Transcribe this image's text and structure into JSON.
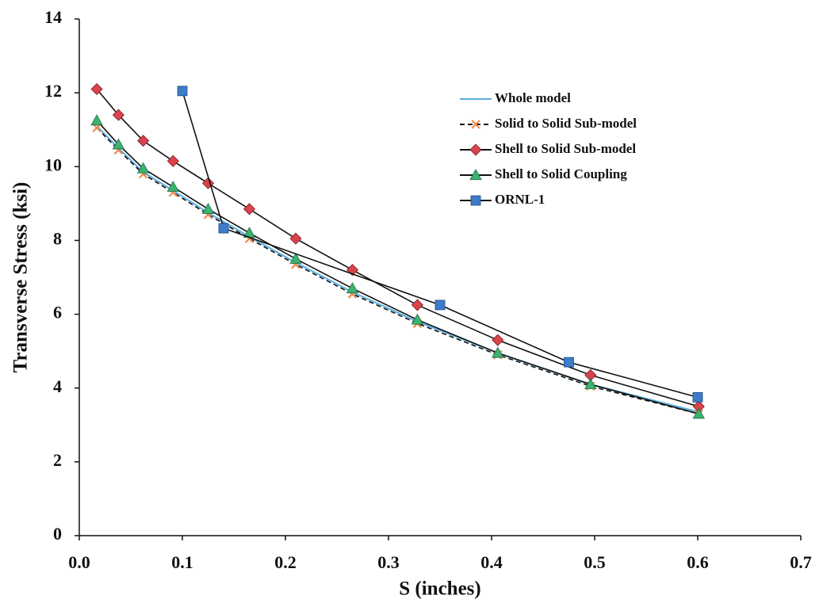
{
  "chart_data": {
    "type": "line",
    "x_label": "S (inches)",
    "y_label": "Transverse Stress (ksi)",
    "xlim": [
      0,
      0.7
    ],
    "ylim": [
      0,
      14
    ],
    "xticks": [
      {
        "value": 0,
        "label": "0.0"
      },
      0.1,
      0.2,
      0.3,
      0.4,
      0.5,
      0.6,
      0.7
    ],
    "yticks": [
      0,
      2,
      4,
      6,
      8,
      10,
      12,
      14
    ],
    "series": [
      {
        "name": "Whole model",
        "color": "#5aaee0",
        "line_color": "#5aaee0",
        "marker": "none",
        "dashed": false,
        "x": [
          0.017,
          0.038,
          0.062,
          0.091,
          0.125,
          0.165,
          0.21,
          0.265,
          0.328,
          0.406,
          0.496,
          0.601
        ],
        "values": [
          11.1,
          10.5,
          9.85,
          9.35,
          8.75,
          8.1,
          7.4,
          6.6,
          5.8,
          4.95,
          4.1,
          3.35
        ]
      },
      {
        "name": "Solid to Solid Sub-model",
        "color": "#f08a4b",
        "line_color": "#111111",
        "marker": "x",
        "dashed": true,
        "x": [
          0.017,
          0.038,
          0.062,
          0.091,
          0.125,
          0.165,
          0.21,
          0.265,
          0.328,
          0.406,
          0.496,
          0.601
        ],
        "values": [
          11.05,
          10.45,
          9.8,
          9.3,
          8.7,
          8.05,
          7.35,
          6.55,
          5.75,
          4.9,
          4.05,
          3.3
        ]
      },
      {
        "name": "Shell to Solid Sub-model",
        "color": "#d9434b",
        "line_color": "#111111",
        "marker": "diamond",
        "dashed": false,
        "x": [
          0.017,
          0.038,
          0.062,
          0.091,
          0.125,
          0.165,
          0.21,
          0.265,
          0.328,
          0.406,
          0.496,
          0.601
        ],
        "values": [
          12.1,
          11.4,
          10.7,
          10.15,
          9.55,
          8.85,
          8.05,
          7.2,
          6.25,
          5.3,
          4.35,
          3.5
        ]
      },
      {
        "name": "Shell to Solid Coupling",
        "color": "#3cb371",
        "line_color": "#111111",
        "marker": "triangle",
        "dashed": false,
        "x": [
          0.017,
          0.038,
          0.062,
          0.091,
          0.125,
          0.165,
          0.21,
          0.265,
          0.328,
          0.406,
          0.496,
          0.601
        ],
        "values": [
          11.25,
          10.6,
          9.95,
          9.45,
          8.85,
          8.2,
          7.5,
          6.7,
          5.85,
          4.95,
          4.1,
          3.3
        ]
      },
      {
        "name": "ORNL-1",
        "color": "#3d7cc9",
        "line_color": "#111111",
        "marker": "square",
        "dashed": false,
        "x": [
          0.1,
          0.14,
          0.35,
          0.475,
          0.6
        ],
        "values": [
          12.05,
          8.33,
          6.25,
          4.7,
          3.75
        ]
      }
    ]
  }
}
